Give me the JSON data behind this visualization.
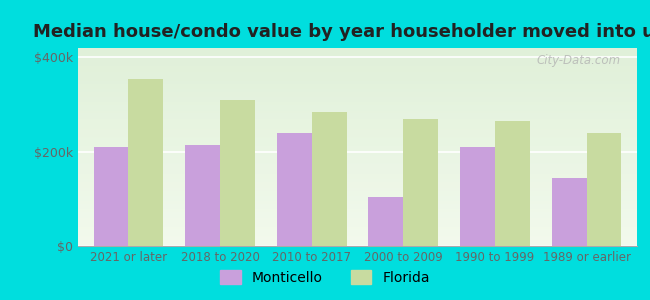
{
  "title": "Median house/condo value by year householder moved into unit",
  "categories": [
    "2021 or later",
    "2018 to 2020",
    "2010 to 2017",
    "2000 to 2009",
    "1990 to 1999",
    "1989 or earlier"
  ],
  "monticello_values": [
    210000,
    215000,
    240000,
    105000,
    210000,
    145000
  ],
  "florida_values": [
    355000,
    310000,
    285000,
    270000,
    265000,
    240000
  ],
  "monticello_color": "#c9a0dc",
  "florida_color": "#c8dba0",
  "bg_color_top": "#f0f8e8",
  "bg_color_bottom": "#e0f5d0",
  "outer_background": "#00dede",
  "ylabel_ticks": [
    "$0",
    "$200k",
    "$400k"
  ],
  "ytick_values": [
    0,
    200000,
    400000
  ],
  "ylim": [
    0,
    420000
  ],
  "bar_width": 0.38,
  "legend_monticello": "Monticello",
  "legend_florida": "Florida",
  "watermark": "City-Data.com",
  "title_fontsize": 13,
  "tick_fontsize": 8.5,
  "ytick_fontsize": 9
}
